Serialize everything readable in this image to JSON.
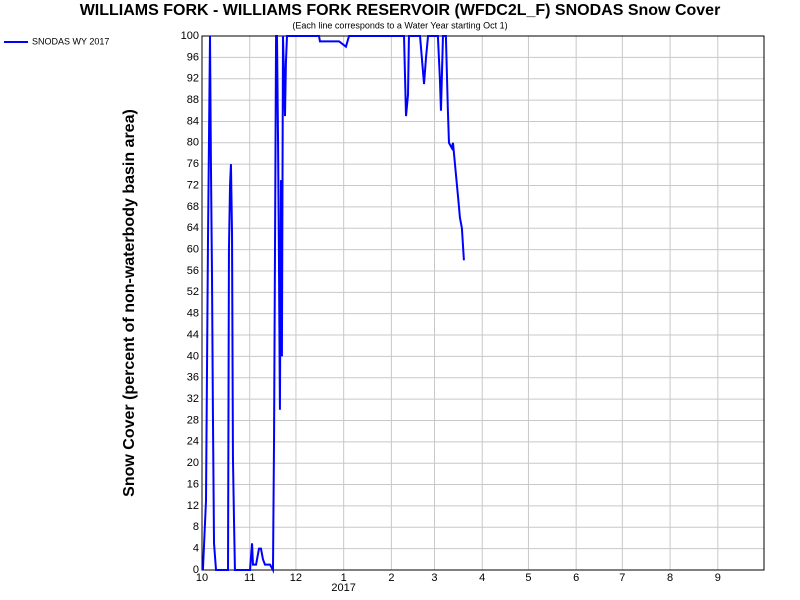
{
  "chart_data": {
    "type": "line",
    "title": "WILLIAMS FORK - WILLIAMS FORK RESERVOIR (WFDC2L_F) SNODAS Snow Cover",
    "subtitle": "(Each line corresponds to a Water Year starting Oct 1)",
    "y_label": "Snow Cover (percent of non-waterbody basin area)",
    "x": [
      0.6,
      2.6,
      3.9,
      5.2,
      5.8,
      6.5,
      7.1,
      7.8,
      9.1,
      16.9,
      17.5,
      18.2,
      18.8,
      19.5,
      20.1,
      20.8,
      21.4,
      31.2,
      32.5,
      33.1,
      35.1,
      37.0,
      38.3,
      39.6,
      40.9,
      44.2,
      46.1,
      46.8,
      48.1,
      48.7,
      49.4,
      50.0,
      50.6,
      51.3,
      51.9,
      52.6,
      53.9,
      54.5,
      55.2,
      55.8,
      76.0,
      76.6,
      88.3,
      89.0,
      93.5,
      95.5,
      131.2,
      132.5,
      133.8,
      134.4,
      141.6,
      144.2,
      145.5,
      146.8,
      153.2,
      154.5,
      155.2,
      156.5,
      158.4,
      159.7,
      160.4,
      162.3,
      163.0,
      164.3,
      165.6,
      166.9,
      167.5,
      168.8,
      170.1
    ],
    "series": [
      {
        "name": "SNODAS WY 2017",
        "color": "#0000ff",
        "values": [
          0,
          13,
          62,
          100,
          76,
          55,
          29,
          5,
          0,
          0,
          60,
          72,
          76,
          63,
          21,
          9,
          0,
          0,
          5,
          1,
          1,
          4,
          4,
          2,
          1,
          1,
          0,
          25,
          100,
          100,
          80,
          57,
          30,
          73,
          40,
          100,
          85,
          95,
          100,
          100,
          100,
          99,
          99,
          99,
          98,
          100,
          100,
          85,
          89,
          100,
          100,
          91,
          96,
          100,
          100,
          92,
          86,
          100,
          100,
          86,
          80,
          79,
          80,
          76,
          72,
          68,
          66,
          64,
          58
        ]
      }
    ],
    "xlim": [
      0,
      365
    ],
    "xticks": [
      {
        "value": 0,
        "label": "10"
      },
      {
        "value": 31,
        "label": "11"
      },
      {
        "value": 61,
        "label": "12"
      },
      {
        "value": 92,
        "label": "1"
      },
      {
        "value": 123,
        "label": "2"
      },
      {
        "value": 151,
        "label": "3"
      },
      {
        "value": 182,
        "label": "4"
      },
      {
        "value": 212,
        "label": "5"
      },
      {
        "value": 243,
        "label": "6"
      },
      {
        "value": 273,
        "label": "7"
      },
      {
        "value": 304,
        "label": "8"
      },
      {
        "value": 335,
        "label": "9"
      }
    ],
    "x_year_label": {
      "value": 92,
      "label": "2017"
    },
    "ylim": [
      0,
      100
    ],
    "yticks": [
      0,
      4,
      8,
      12,
      16,
      20,
      24,
      28,
      32,
      36,
      40,
      44,
      48,
      52,
      56,
      60,
      64,
      68,
      72,
      76,
      80,
      84,
      88,
      92,
      96,
      100
    ],
    "grid": true,
    "legend": "top-left"
  }
}
